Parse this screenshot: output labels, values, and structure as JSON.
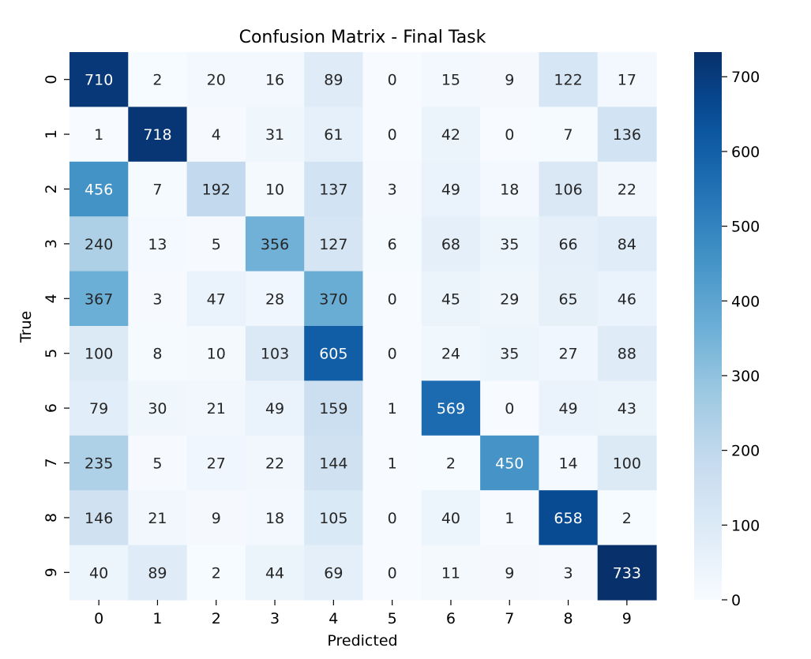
{
  "chart_data": {
    "type": "heatmap",
    "title": "Confusion Matrix - Final Task",
    "xlabel": "Predicted",
    "ylabel": "True",
    "x_categories": [
      "0",
      "1",
      "2",
      "3",
      "4",
      "5",
      "6",
      "7",
      "8",
      "9"
    ],
    "y_categories": [
      "0",
      "1",
      "2",
      "3",
      "4",
      "5",
      "6",
      "7",
      "8",
      "9"
    ],
    "values": [
      [
        710,
        2,
        20,
        16,
        89,
        0,
        15,
        9,
        122,
        17
      ],
      [
        1,
        718,
        4,
        31,
        61,
        0,
        42,
        0,
        7,
        136
      ],
      [
        456,
        7,
        192,
        10,
        137,
        3,
        49,
        18,
        106,
        22
      ],
      [
        240,
        13,
        5,
        356,
        127,
        6,
        68,
        35,
        66,
        84
      ],
      [
        367,
        3,
        47,
        28,
        370,
        0,
        45,
        29,
        65,
        46
      ],
      [
        100,
        8,
        10,
        103,
        605,
        0,
        24,
        35,
        27,
        88
      ],
      [
        79,
        30,
        21,
        49,
        159,
        1,
        569,
        0,
        49,
        43
      ],
      [
        235,
        5,
        27,
        22,
        144,
        1,
        2,
        450,
        14,
        100
      ],
      [
        146,
        21,
        9,
        18,
        105,
        0,
        40,
        1,
        658,
        2
      ],
      [
        40,
        89,
        2,
        44,
        69,
        0,
        11,
        9,
        3,
        733
      ]
    ],
    "colormap": "Blues",
    "color_range": [
      0,
      733
    ],
    "colorbar_ticks": [
      0,
      100,
      200,
      300,
      400,
      500,
      600,
      700
    ],
    "annotations": true,
    "grid": false
  }
}
